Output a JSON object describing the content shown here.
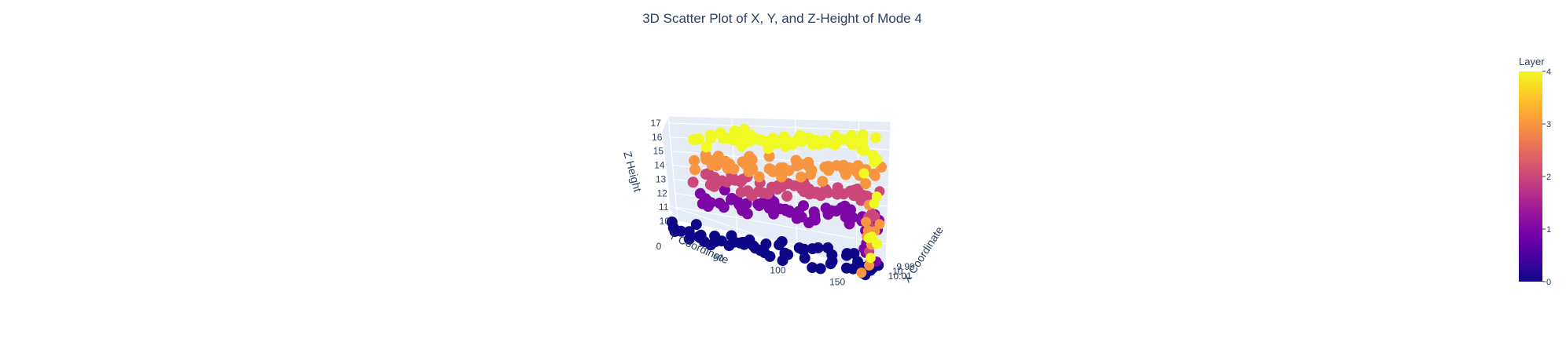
{
  "chart_data": {
    "type": "scatter3d",
    "title": "3D Scatter Plot of X, Y, and Z-Height of Mode 4",
    "axes": {
      "x": {
        "label": "X Coordinate",
        "ticks": [
          "9.99",
          "10",
          "10.01"
        ],
        "range": [
          9.985,
          10.015
        ]
      },
      "y": {
        "label": "Y Coordinate",
        "ticks": [
          "0",
          "50",
          "100",
          "150"
        ],
        "range": [
          0,
          175
        ]
      },
      "z": {
        "label": "Z Height",
        "ticks": [
          "10",
          "11",
          "12",
          "13",
          "14",
          "15",
          "16",
          "17"
        ],
        "range": [
          10,
          17.5
        ]
      }
    },
    "colorbar": {
      "title": "Layer",
      "ticks": [
        "0",
        "1",
        "2",
        "3",
        "4"
      ],
      "range": [
        0,
        4
      ],
      "colorscale": [
        "#0d0887",
        "#46039f",
        "#7201a8",
        "#9c179e",
        "#bd3786",
        "#d8576b",
        "#ed7953",
        "#fb9f3a",
        "#fdca26",
        "#f0f921"
      ]
    },
    "series": [
      {
        "layer": 0,
        "z": 10.0,
        "y_range": [
          0,
          170
        ]
      },
      {
        "layer": 1,
        "z": 12.5,
        "y_range": [
          25,
          170
        ]
      },
      {
        "layer": 2,
        "z": 13.8,
        "y_range": [
          25,
          170
        ]
      },
      {
        "layer": 3,
        "z": 15.0,
        "y_range": [
          25,
          170
        ]
      },
      {
        "layer": 4,
        "z": 16.6,
        "y_range": [
          25,
          170
        ]
      }
    ],
    "grid": true
  }
}
